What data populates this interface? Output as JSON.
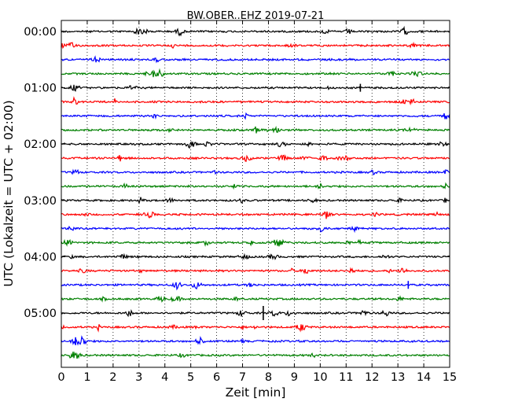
{
  "chart_data": {
    "type": "line",
    "title": "BW.OBER..EHZ 2019-07-21",
    "xlabel": "Zeit  [min]",
    "ylabel": "UTC (Lokalzeit = UTC + 02:00)",
    "xlim": [
      0,
      15
    ],
    "x_ticks": [
      "0",
      "1",
      "2",
      "3",
      "4",
      "5",
      "6",
      "7",
      "8",
      "9",
      "10",
      "11",
      "12",
      "13",
      "14",
      "15"
    ],
    "y_tick_labels": [
      "00:00",
      "01:00",
      "02:00",
      "03:00",
      "04:00",
      "05:00"
    ],
    "grid": "vertical dotted",
    "trace_colors": [
      "#000000",
      "#ff0000",
      "#0000ff",
      "#008000"
    ],
    "row_interval_minutes": 15,
    "rows": 24
  }
}
